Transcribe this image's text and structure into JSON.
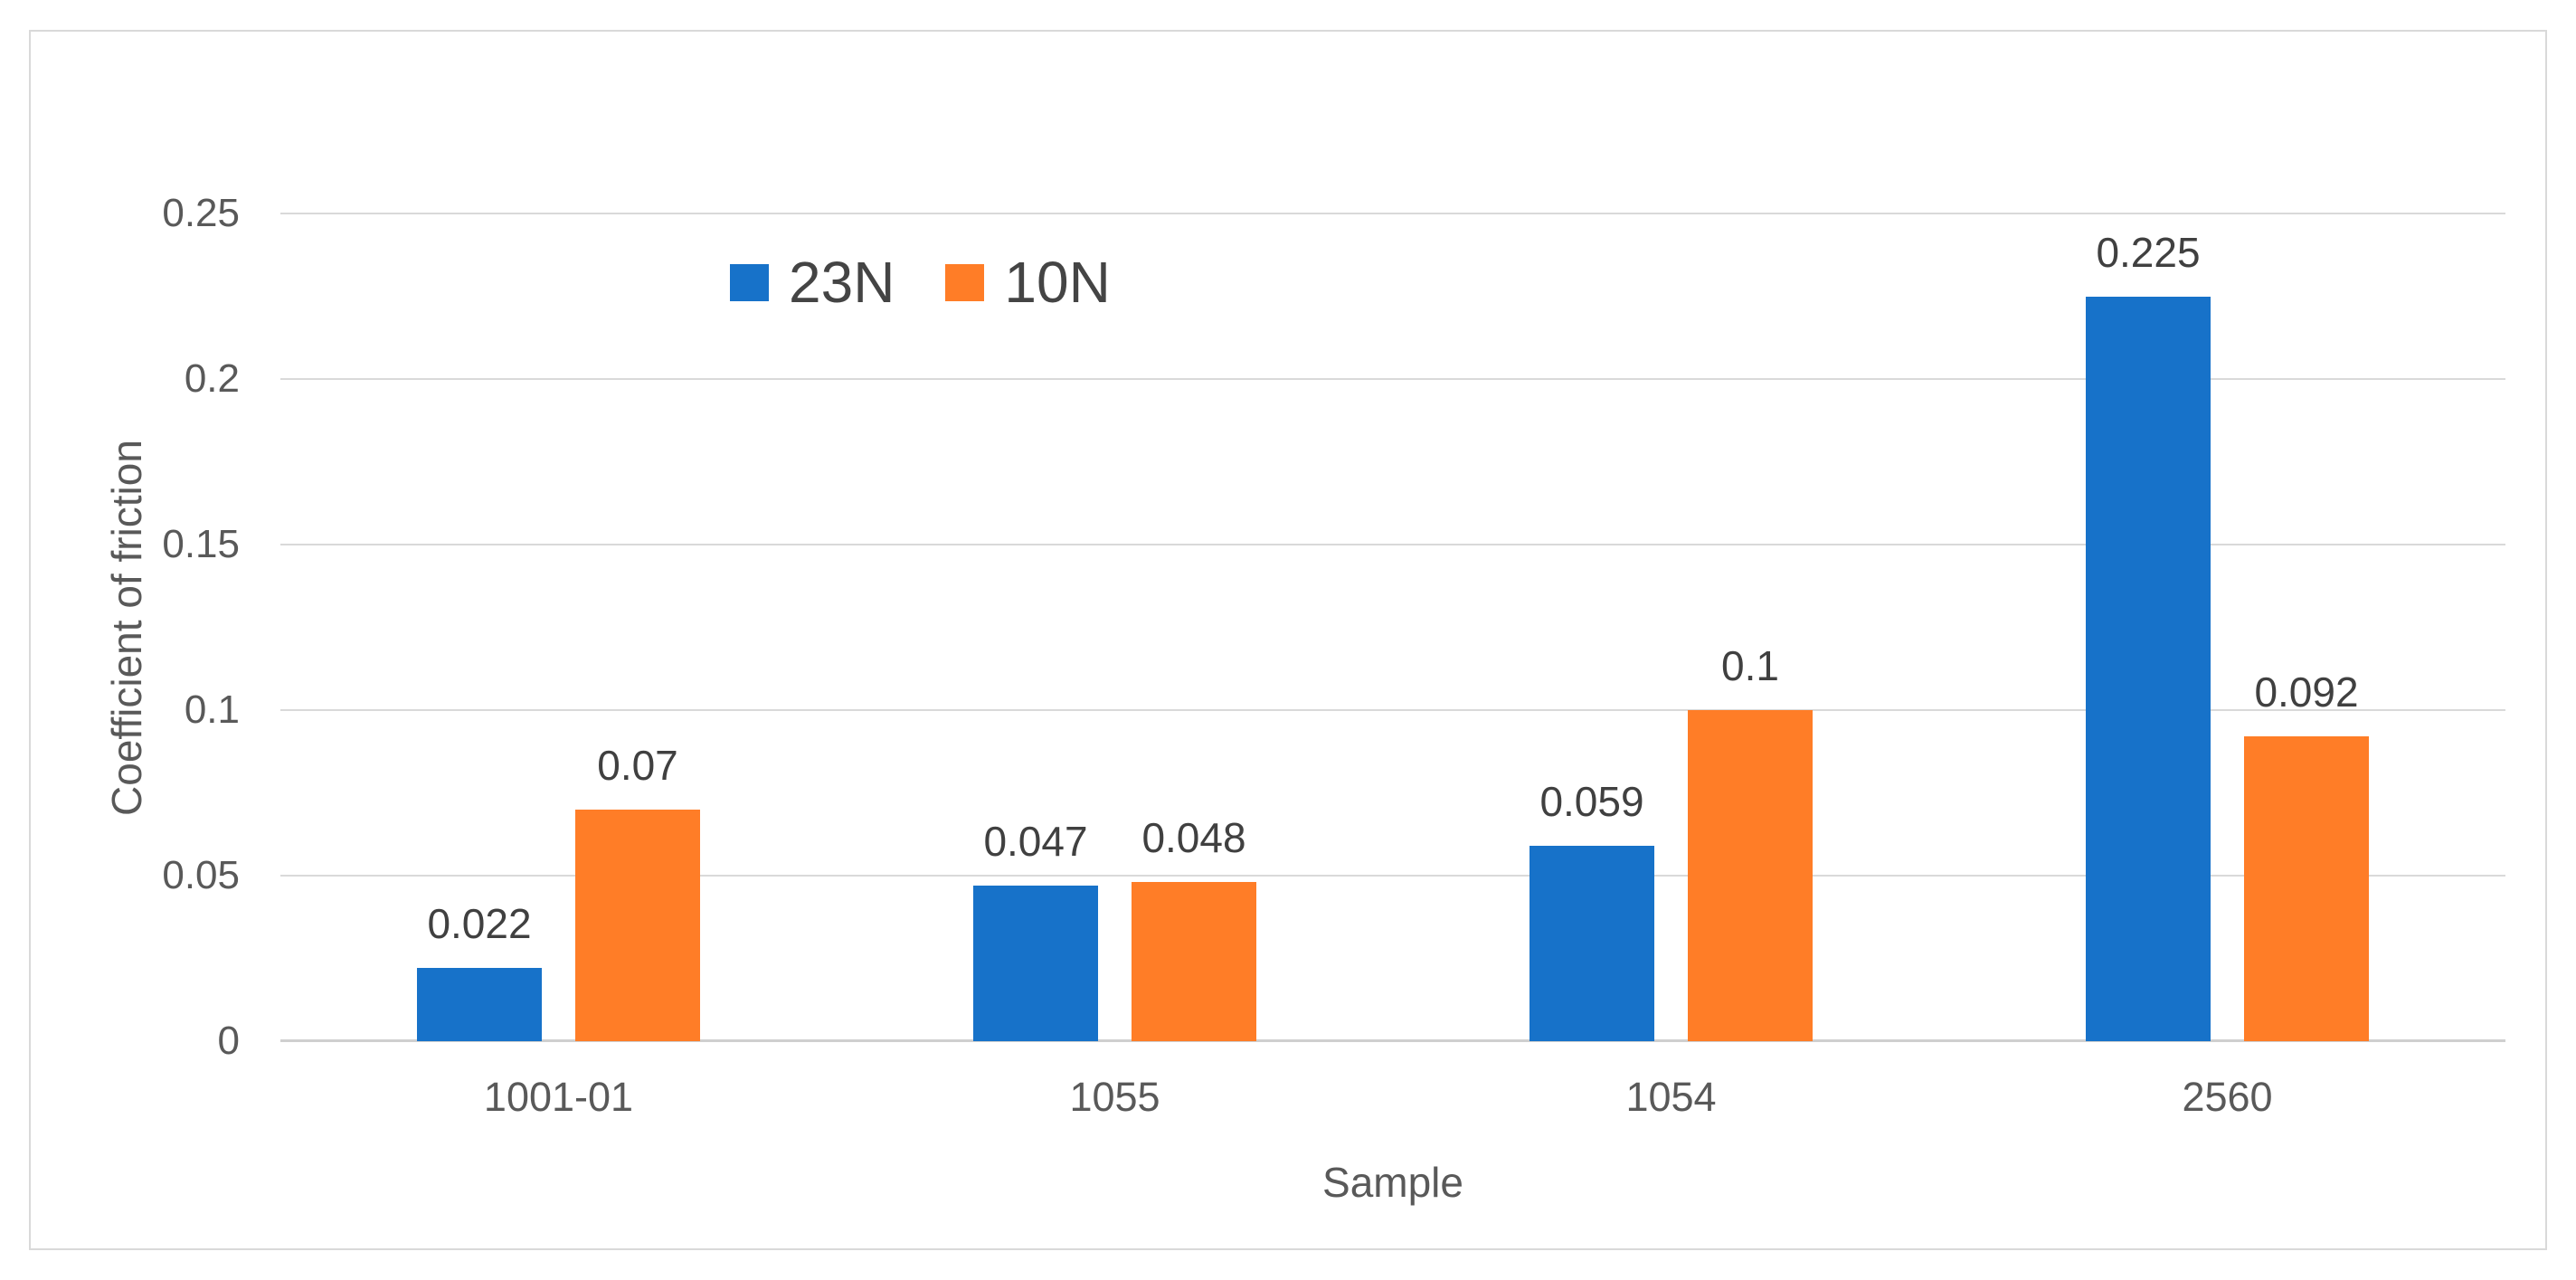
{
  "figure": {
    "background_color": "#FFFFFF",
    "border_color": "#D9D9D9",
    "gridline_color": "#D9D9D9",
    "axis_text_color": "#595959",
    "data_label_color": "#404040"
  },
  "chart_data": {
    "type": "bar",
    "title": "",
    "xlabel": "Sample",
    "ylabel": "Coefficient of friction",
    "categories": [
      "1001-01",
      "1055",
      "1054",
      "2560"
    ],
    "series": [
      {
        "name": "23N",
        "color": "#1772C9",
        "values": [
          0.022,
          0.047,
          0.059,
          0.225
        ],
        "labels": [
          "0.022",
          "0.047",
          "0.059",
          "0.225"
        ]
      },
      {
        "name": "10N",
        "color": "#FF7D27",
        "values": [
          0.07,
          0.048,
          0.1,
          0.092
        ],
        "labels": [
          "0.07",
          "0.048",
          "0.1",
          "0.092"
        ]
      }
    ],
    "ylim": [
      0,
      0.25
    ],
    "ytick_step": 0.05,
    "yticks": [
      "0",
      "0.05",
      "0.1",
      "0.15",
      "0.2",
      "0.25"
    ],
    "grid": "horizontal",
    "legend_position": "inside-top-left-of-center",
    "legend_entries": [
      "23N",
      "10N"
    ]
  }
}
